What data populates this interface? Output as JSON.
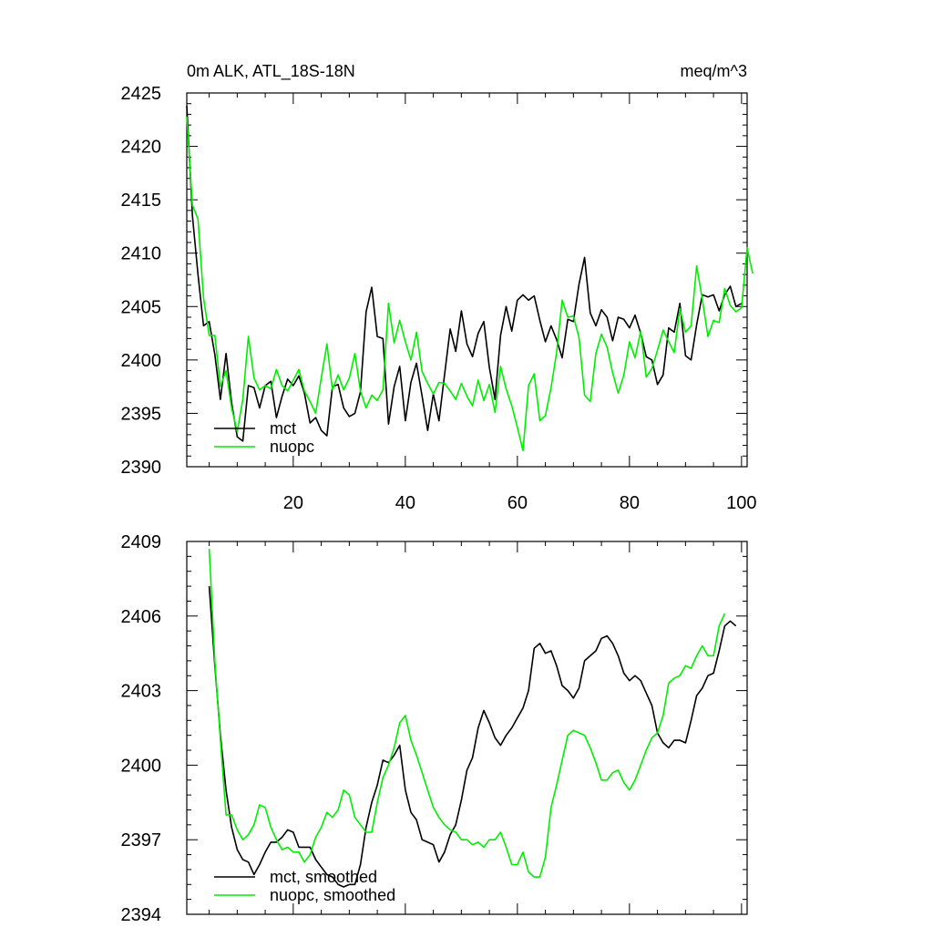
{
  "chart_data": [
    {
      "type": "line",
      "title": "0m ALK, ATL_18S-18N",
      "units": "meq/m^3",
      "xlabel": "",
      "ylabel": "",
      "xlim": [
        1,
        101
      ],
      "ylim": [
        2390,
        2425
      ],
      "x_ticks": [
        20,
        40,
        60,
        80,
        100
      ],
      "x_tick_labels": [
        "20",
        "40",
        "60",
        "80",
        "100"
      ],
      "y_ticks": [
        2390,
        2395,
        2400,
        2405,
        2410,
        2415,
        2420,
        2425
      ],
      "y_tick_labels": [
        "2390",
        "2395",
        "2400",
        "2405",
        "2410",
        "2415",
        "2420",
        "2425"
      ],
      "legend": "bottom-left",
      "series": [
        {
          "name": "mct",
          "color": "#000000",
          "start_x": 1,
          "values": [
            2423.8,
            2413.5,
            2408.0,
            2403.2,
            2403.6,
            2400.5,
            2396.3,
            2400.6,
            2396.0,
            2392.8,
            2392.4,
            2397.6,
            2397.4,
            2395.5,
            2397.6,
            2398.0,
            2394.6,
            2396.6,
            2398.2,
            2397.6,
            2398.5,
            2396.9,
            2394.1,
            2394.6,
            2393.4,
            2392.9,
            2397.5,
            2397.7,
            2395.5,
            2394.7,
            2395.0,
            2397.0,
            2404.5,
            2406.8,
            2402.2,
            2402.0,
            2394.0,
            2397.5,
            2399.4,
            2394.3,
            2397.9,
            2399.7,
            2396.6,
            2393.4,
            2396.8,
            2394.3,
            2398.6,
            2402.9,
            2400.8,
            2404.6,
            2401.5,
            2400.3,
            2402.5,
            2403.6,
            2399.3,
            2396.3,
            2402.3,
            2405.0,
            2402.7,
            2405.6,
            2406.1,
            2405.6,
            2406.0,
            2403.7,
            2401.7,
            2403.2,
            2401.9,
            2400.2,
            2403.8,
            2403.6,
            2407.1,
            2409.6,
            2404.4,
            2403.2,
            2404.7,
            2404.0,
            2401.8,
            2404.0,
            2403.8,
            2403.0,
            2404.2,
            2402.5,
            2400.3,
            2400.0,
            2397.7,
            2398.6,
            2403.0,
            2402.6,
            2405.3,
            2400.4,
            2400.0,
            2403.3,
            2406.1,
            2405.9,
            2406.1,
            2404.6,
            2406.1,
            2406.9,
            2405.0,
            2405.3
          ]
        },
        {
          "name": "nuopc",
          "color": "#00ee00",
          "start_x": 1,
          "values": [
            2422.8,
            2414.5,
            2413.2,
            2405.8,
            2402.3,
            2402.3,
            2397.5,
            2399.0,
            2395.5,
            2393.3,
            2396.3,
            2402.2,
            2398.3,
            2397.2,
            2397.6,
            2397.3,
            2399.1,
            2397.6,
            2397.1,
            2398.1,
            2399.1,
            2397.1,
            2396.1,
            2395.0,
            2398.3,
            2401.5,
            2397.2,
            2398.6,
            2397.2,
            2398.3,
            2400.6,
            2397.1,
            2395.5,
            2396.7,
            2396.2,
            2397.2,
            2405.3,
            2401.6,
            2403.7,
            2401.7,
            2400.0,
            2402.6,
            2398.9,
            2397.8,
            2396.8,
            2397.9,
            2397.8,
            2397.1,
            2396.3,
            2397.8,
            2396.6,
            2395.7,
            2398.1,
            2396.2,
            2397.7,
            2395.1,
            2399.4,
            2397.3,
            2395.7,
            2393.7,
            2391.5,
            2397.6,
            2398.7,
            2394.3,
            2394.8,
            2397.4,
            2400.7,
            2405.6,
            2404.0,
            2404.1,
            2402.1,
            2396.7,
            2396.1,
            2400.6,
            2402.4,
            2401.2,
            2398.8,
            2396.9,
            2398.6,
            2401.7,
            2400.2,
            2402.7,
            2398.4,
            2399.2,
            2400.9,
            2402.8,
            2401.7,
            2400.7,
            2404.8,
            2402.6,
            2403.2,
            2408.8,
            2405.7,
            2402.2,
            2403.7,
            2403.5,
            2406.7,
            2405.1,
            2404.5,
            2404.9,
            2410.5,
            2408.1
          ]
        }
      ]
    },
    {
      "type": "line",
      "title": "",
      "xlabel": "",
      "ylabel": "",
      "xlim": [
        1,
        101
      ],
      "ylim": [
        2394,
        2409
      ],
      "x_ticks": [
        20,
        40,
        60,
        80,
        100
      ],
      "y_ticks": [
        2394,
        2397,
        2400,
        2403,
        2406,
        2409
      ],
      "y_tick_labels": [
        "2394",
        "2397",
        "2400",
        "2403",
        "2406",
        "2409"
      ],
      "legend": "bottom-left",
      "series": [
        {
          "name": "mct, smoothed",
          "color": "#000000",
          "start_x": 5,
          "values": [
            2407.2,
            2404.0,
            2401.2,
            2399.0,
            2397.5,
            2396.6,
            2396.2,
            2396.1,
            2395.6,
            2396.0,
            2396.5,
            2396.9,
            2396.9,
            2397.1,
            2397.4,
            2397.3,
            2396.7,
            2396.7,
            2396.7,
            2396.2,
            2395.9,
            2395.6,
            2395.5,
            2395.2,
            2395.1,
            2395.2,
            2395.2,
            2396.0,
            2397.5,
            2398.5,
            2399.2,
            2400.2,
            2400.1,
            2400.4,
            2400.8,
            2399.0,
            2398.1,
            2397.8,
            2397.0,
            2396.9,
            2396.8,
            2396.1,
            2396.5,
            2397.2,
            2397.6,
            2398.6,
            2399.8,
            2400.3,
            2401.5,
            2402.2,
            2401.7,
            2401.1,
            2400.8,
            2401.2,
            2401.5,
            2401.9,
            2402.3,
            2403.0,
            2404.7,
            2404.9,
            2404.5,
            2404.6,
            2404.0,
            2403.2,
            2403.0,
            2402.7,
            2403.1,
            2404.2,
            2404.4,
            2404.6,
            2405.1,
            2405.2,
            2404.9,
            2404.4,
            2403.7,
            2403.4,
            2403.6,
            2403.4,
            2402.9,
            2402.4,
            2401.3,
            2400.9,
            2400.7,
            2401.0,
            2401.0,
            2400.9,
            2401.8,
            2402.8,
            2403.1,
            2403.6,
            2403.7,
            2404.6,
            2405.6,
            2405.8,
            2405.6
          ]
        },
        {
          "name": "nuopc, smoothed",
          "color": "#00ee00",
          "start_x": 5,
          "values": [
            2408.7,
            2404.2,
            2401.0,
            2398.0,
            2398.0,
            2397.4,
            2397.0,
            2397.2,
            2397.6,
            2398.4,
            2398.3,
            2397.5,
            2397.0,
            2396.6,
            2396.7,
            2396.5,
            2396.5,
            2396.1,
            2396.4,
            2397.1,
            2397.5,
            2398.1,
            2397.9,
            2398.2,
            2399.0,
            2398.8,
            2397.9,
            2397.6,
            2397.3,
            2397.3,
            2398.5,
            2399.5,
            2400.0,
            2400.7,
            2401.7,
            2402.0,
            2401.0,
            2400.4,
            2399.7,
            2399.0,
            2398.3,
            2397.9,
            2397.6,
            2397.4,
            2397.3,
            2397.0,
            2397.0,
            2396.8,
            2396.9,
            2396.7,
            2397.0,
            2397.0,
            2397.3,
            2396.7,
            2396.0,
            2396.0,
            2396.5,
            2395.7,
            2395.5,
            2395.5,
            2396.3,
            2398.3,
            2399.2,
            2400.2,
            2401.2,
            2401.4,
            2401.3,
            2401.2,
            2400.7,
            2400.1,
            2399.4,
            2399.4,
            2399.7,
            2399.8,
            2399.3,
            2399.0,
            2399.4,
            2400.0,
            2400.6,
            2401.1,
            2401.3,
            2402.0,
            2403.3,
            2403.5,
            2403.6,
            2404.0,
            2403.9,
            2404.4,
            2404.8,
            2404.4,
            2404.4,
            2405.6,
            2406.1
          ]
        }
      ]
    }
  ]
}
